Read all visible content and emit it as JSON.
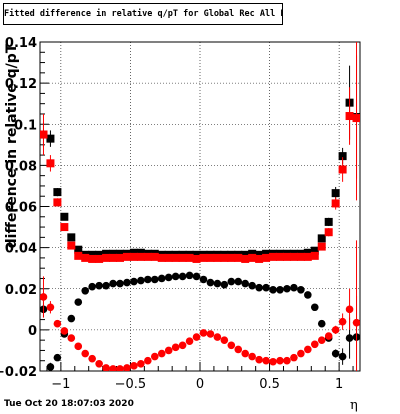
{
  "canvas": {
    "timestamp": "Tue Oct 20 18:07:03 2020"
  },
  "chart_data": {
    "type": "scatter",
    "title": "Fitted difference in relative q/pT for Global Rec All EtapT",
    "xlabel": "η",
    "ylabel": "difference in relative q/pT",
    "xlim": [
      -1.15,
      1.15
    ],
    "ylim": [
      -0.02,
      0.14
    ],
    "grid": true,
    "x_ticks": [
      -1,
      -0.5,
      0,
      0.5,
      1
    ],
    "x_tick_labels": [
      "−1",
      "−0.5",
      "0",
      "0.5",
      "1"
    ],
    "y_ticks": [
      -0.02,
      0,
      0.02,
      0.04,
      0.06,
      0.08,
      0.1,
      0.12,
      0.14
    ],
    "y_tick_labels": [
      "−0.02",
      "0",
      "0.02",
      "0.04",
      "0.06",
      "0.08",
      "0.1",
      "0.12",
      "0.14"
    ],
    "x": [
      -1.125,
      -1.075,
      -1.025,
      -0.975,
      -0.925,
      -0.875,
      -0.825,
      -0.775,
      -0.725,
      -0.675,
      -0.625,
      -0.575,
      -0.525,
      -0.475,
      -0.425,
      -0.375,
      -0.325,
      -0.275,
      -0.225,
      -0.175,
      -0.125,
      -0.075,
      -0.025,
      0.025,
      0.075,
      0.125,
      0.175,
      0.225,
      0.275,
      0.325,
      0.375,
      0.425,
      0.475,
      0.525,
      0.575,
      0.625,
      0.675,
      0.725,
      0.775,
      0.825,
      0.875,
      0.925,
      0.975,
      1.025,
      1.075,
      1.125
    ],
    "series": [
      {
        "marker": "square",
        "color": "#000000",
        "values": [
          0.095,
          0.093,
          0.067,
          0.055,
          0.045,
          0.039,
          0.0365,
          0.0365,
          0.0365,
          0.037,
          0.037,
          0.037,
          0.037,
          0.0375,
          0.0375,
          0.037,
          0.037,
          0.0365,
          0.0365,
          0.0365,
          0.0365,
          0.0365,
          0.0365,
          0.0365,
          0.0365,
          0.0365,
          0.0365,
          0.0365,
          0.0365,
          0.0365,
          0.037,
          0.0365,
          0.037,
          0.037,
          0.037,
          0.037,
          0.037,
          0.037,
          0.0375,
          0.0385,
          0.0445,
          0.0525,
          0.0665,
          0.0845,
          0.1105,
          0.1035
        ],
        "errors": [
          0.006,
          0.004,
          0.002,
          0.001,
          0.001,
          0.001,
          0.001,
          0.001,
          0.001,
          0.001,
          0.001,
          0.001,
          0.001,
          0.001,
          0.001,
          0.001,
          0.001,
          0.001,
          0.001,
          0.001,
          0.001,
          0.001,
          0.001,
          0.001,
          0.001,
          0.001,
          0.001,
          0.001,
          0.001,
          0.001,
          0.001,
          0.001,
          0.001,
          0.001,
          0.001,
          0.001,
          0.001,
          0.001,
          0.001,
          0.001,
          0.001,
          0.002,
          0.003,
          0.004,
          0.018,
          0.03
        ]
      },
      {
        "marker": "square",
        "color": "#ff0000",
        "values": [
          0.095,
          0.081,
          0.062,
          0.05,
          0.041,
          0.036,
          0.035,
          0.0345,
          0.0345,
          0.035,
          0.035,
          0.035,
          0.0355,
          0.0355,
          0.0355,
          0.0355,
          0.0355,
          0.035,
          0.035,
          0.035,
          0.035,
          0.035,
          0.0345,
          0.035,
          0.035,
          0.035,
          0.035,
          0.035,
          0.035,
          0.0345,
          0.035,
          0.0345,
          0.035,
          0.0355,
          0.0355,
          0.0355,
          0.0355,
          0.0355,
          0.0355,
          0.036,
          0.0405,
          0.0475,
          0.0615,
          0.078,
          0.104,
          0.103
        ],
        "errors": [
          0.01,
          0.004,
          0.002,
          0.001,
          0.001,
          0.001,
          0.001,
          0.001,
          0.001,
          0.001,
          0.001,
          0.001,
          0.001,
          0.001,
          0.001,
          0.001,
          0.001,
          0.001,
          0.001,
          0.001,
          0.001,
          0.001,
          0.001,
          0.001,
          0.001,
          0.001,
          0.001,
          0.001,
          0.001,
          0.001,
          0.001,
          0.001,
          0.001,
          0.001,
          0.001,
          0.001,
          0.001,
          0.001,
          0.001,
          0.001,
          0.001,
          0.002,
          0.003,
          0.006,
          0.014,
          0.04
        ]
      },
      {
        "marker": "circle",
        "color": "#000000",
        "values": [
          0.01,
          -0.018,
          -0.0135,
          -0.002,
          0.0055,
          0.0135,
          0.019,
          0.021,
          0.0215,
          0.0215,
          0.0225,
          0.0225,
          0.023,
          0.0235,
          0.024,
          0.0245,
          0.0245,
          0.025,
          0.0255,
          0.026,
          0.026,
          0.0265,
          0.026,
          0.0245,
          0.023,
          0.0225,
          0.022,
          0.0235,
          0.0235,
          0.0225,
          0.0215,
          0.0205,
          0.0205,
          0.0195,
          0.0195,
          0.02,
          0.0205,
          0.0195,
          0.017,
          0.011,
          0.003,
          -0.004,
          -0.0115,
          -0.013,
          -0.004,
          -0.0035
        ],
        "errors": [
          0.004,
          0.002,
          0.001,
          0.001,
          0.001,
          0.001,
          0.001,
          0.001,
          0.001,
          0.001,
          0.001,
          0.001,
          0.001,
          0.001,
          0.001,
          0.001,
          0.001,
          0.001,
          0.001,
          0.001,
          0.001,
          0.001,
          0.001,
          0.001,
          0.001,
          0.001,
          0.001,
          0.001,
          0.001,
          0.001,
          0.001,
          0.001,
          0.001,
          0.001,
          0.001,
          0.001,
          0.001,
          0.001,
          0.001,
          0.001,
          0.001,
          0.001,
          0.002,
          0.004,
          0.01,
          0.02
        ]
      },
      {
        "marker": "circle",
        "color": "#ff0000",
        "values": [
          0.016,
          0.011,
          0.003,
          -0.0005,
          -0.004,
          -0.008,
          -0.0115,
          -0.014,
          -0.0165,
          -0.0185,
          -0.019,
          -0.019,
          -0.0185,
          -0.0175,
          -0.0165,
          -0.015,
          -0.013,
          -0.0115,
          -0.01,
          -0.0085,
          -0.0075,
          -0.0055,
          -0.0035,
          -0.0015,
          -0.002,
          -0.0035,
          -0.005,
          -0.0075,
          -0.0095,
          -0.0115,
          -0.013,
          -0.0145,
          -0.015,
          -0.0155,
          -0.015,
          -0.015,
          -0.0135,
          -0.0115,
          -0.0095,
          -0.007,
          -0.005,
          -0.003,
          0.0,
          0.004,
          0.01,
          0.0035
        ],
        "errors": [
          0.01,
          0.003,
          0.001,
          0.001,
          0.001,
          0.001,
          0.001,
          0.001,
          0.001,
          0.001,
          0.001,
          0.001,
          0.001,
          0.001,
          0.001,
          0.001,
          0.001,
          0.001,
          0.001,
          0.001,
          0.001,
          0.001,
          0.001,
          0.001,
          0.001,
          0.001,
          0.001,
          0.001,
          0.001,
          0.001,
          0.001,
          0.001,
          0.001,
          0.001,
          0.001,
          0.001,
          0.001,
          0.001,
          0.001,
          0.001,
          0.001,
          0.001,
          0.002,
          0.004,
          0.01,
          0.04
        ]
      }
    ]
  }
}
